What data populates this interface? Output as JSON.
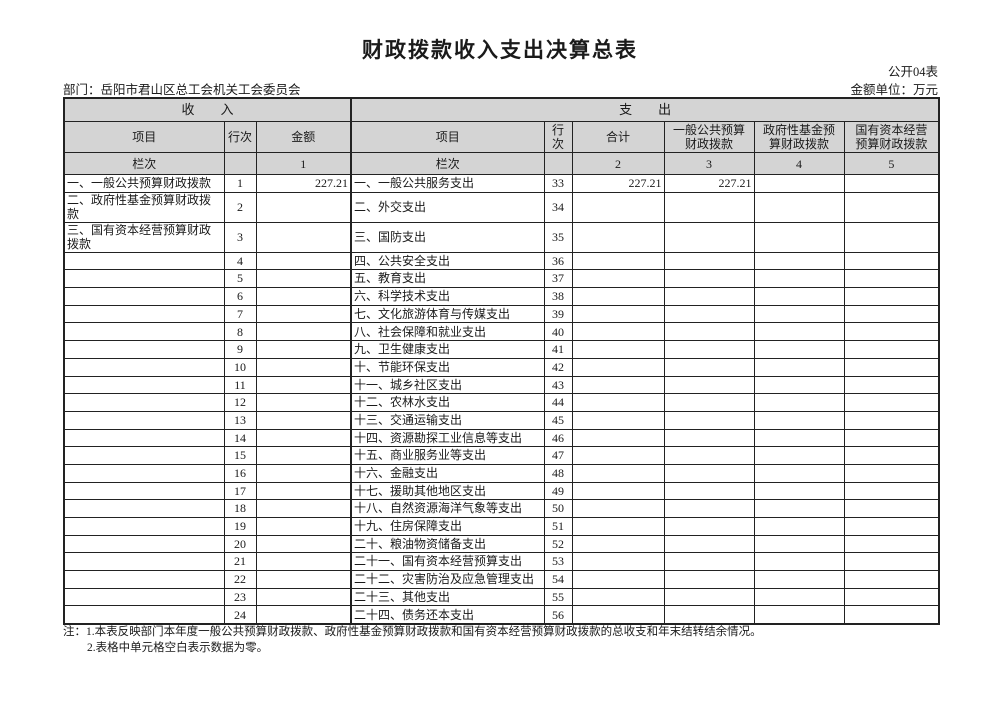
{
  "page": {
    "title": "财政拨款收入支出决算总表",
    "table_code": "公开04表",
    "department": "部门：岳阳市君山区总工会机关工会委员会",
    "unit": "金额单位：万元"
  },
  "colors": {
    "header_bg": "#d4d4d4",
    "border": "#222222",
    "text": "#1a1a1a"
  },
  "table": {
    "headers": {
      "income_band": "收　　入",
      "expense_band": "支　　出",
      "item": "项目",
      "line": "行次",
      "amount": "金额",
      "total": "合计",
      "general_budget": "一般公共预算\n财政拨款",
      "gov_fund": "政府性基金预\n算财政拨款",
      "state_capital": "国有资本经营\n预算财政拨款",
      "lan_label": "栏次",
      "col1": "1",
      "col2": "2",
      "col3": "3",
      "col4": "4",
      "col5": "5"
    },
    "rows": [
      {
        "in_item": "一、一般公共预算财政拨款",
        "in_line": "1",
        "in_amount": "227.21",
        "out_item": "一、一般公共服务支出",
        "out_line": "33",
        "out_total": "227.21",
        "out_general": "227.21",
        "out_govfund": "",
        "out_statecap": ""
      },
      {
        "in_item": "二、政府性基金预算财政拨款",
        "in_line": "2",
        "in_amount": "",
        "out_item": "二、外交支出",
        "out_line": "34",
        "out_total": "",
        "out_general": "",
        "out_govfund": "",
        "out_statecap": ""
      },
      {
        "in_item": "三、国有资本经营预算财政拨款",
        "in_line": "3",
        "in_amount": "",
        "out_item": "三、国防支出",
        "out_line": "35",
        "out_total": "",
        "out_general": "",
        "out_govfund": "",
        "out_statecap": ""
      },
      {
        "in_item": "",
        "in_line": "4",
        "in_amount": "",
        "out_item": "四、公共安全支出",
        "out_line": "36",
        "out_total": "",
        "out_general": "",
        "out_govfund": "",
        "out_statecap": ""
      },
      {
        "in_item": "",
        "in_line": "5",
        "in_amount": "",
        "out_item": "五、教育支出",
        "out_line": "37",
        "out_total": "",
        "out_general": "",
        "out_govfund": "",
        "out_statecap": ""
      },
      {
        "in_item": "",
        "in_line": "6",
        "in_amount": "",
        "out_item": "六、科学技术支出",
        "out_line": "38",
        "out_total": "",
        "out_general": "",
        "out_govfund": "",
        "out_statecap": ""
      },
      {
        "in_item": "",
        "in_line": "7",
        "in_amount": "",
        "out_item": "七、文化旅游体育与传媒支出",
        "out_line": "39",
        "out_total": "",
        "out_general": "",
        "out_govfund": "",
        "out_statecap": ""
      },
      {
        "in_item": "",
        "in_line": "8",
        "in_amount": "",
        "out_item": "八、社会保障和就业支出",
        "out_line": "40",
        "out_total": "",
        "out_general": "",
        "out_govfund": "",
        "out_statecap": ""
      },
      {
        "in_item": "",
        "in_line": "9",
        "in_amount": "",
        "out_item": "九、卫生健康支出",
        "out_line": "41",
        "out_total": "",
        "out_general": "",
        "out_govfund": "",
        "out_statecap": ""
      },
      {
        "in_item": "",
        "in_line": "10",
        "in_amount": "",
        "out_item": "十、节能环保支出",
        "out_line": "42",
        "out_total": "",
        "out_general": "",
        "out_govfund": "",
        "out_statecap": ""
      },
      {
        "in_item": "",
        "in_line": "11",
        "in_amount": "",
        "out_item": "十一、城乡社区支出",
        "out_line": "43",
        "out_total": "",
        "out_general": "",
        "out_govfund": "",
        "out_statecap": ""
      },
      {
        "in_item": "",
        "in_line": "12",
        "in_amount": "",
        "out_item": "十二、农林水支出",
        "out_line": "44",
        "out_total": "",
        "out_general": "",
        "out_govfund": "",
        "out_statecap": ""
      },
      {
        "in_item": "",
        "in_line": "13",
        "in_amount": "",
        "out_item": "十三、交通运输支出",
        "out_line": "45",
        "out_total": "",
        "out_general": "",
        "out_govfund": "",
        "out_statecap": ""
      },
      {
        "in_item": "",
        "in_line": "14",
        "in_amount": "",
        "out_item": "十四、资源勘探工业信息等支出",
        "out_line": "46",
        "out_total": "",
        "out_general": "",
        "out_govfund": "",
        "out_statecap": ""
      },
      {
        "in_item": "",
        "in_line": "15",
        "in_amount": "",
        "out_item": "十五、商业服务业等支出",
        "out_line": "47",
        "out_total": "",
        "out_general": "",
        "out_govfund": "",
        "out_statecap": ""
      },
      {
        "in_item": "",
        "in_line": "16",
        "in_amount": "",
        "out_item": "十六、金融支出",
        "out_line": "48",
        "out_total": "",
        "out_general": "",
        "out_govfund": "",
        "out_statecap": ""
      },
      {
        "in_item": "",
        "in_line": "17",
        "in_amount": "",
        "out_item": "十七、援助其他地区支出",
        "out_line": "49",
        "out_total": "",
        "out_general": "",
        "out_govfund": "",
        "out_statecap": ""
      },
      {
        "in_item": "",
        "in_line": "18",
        "in_amount": "",
        "out_item": "十八、自然资源海洋气象等支出",
        "out_line": "50",
        "out_total": "",
        "out_general": "",
        "out_govfund": "",
        "out_statecap": ""
      },
      {
        "in_item": "",
        "in_line": "19",
        "in_amount": "",
        "out_item": "十九、住房保障支出",
        "out_line": "51",
        "out_total": "",
        "out_general": "",
        "out_govfund": "",
        "out_statecap": ""
      },
      {
        "in_item": "",
        "in_line": "20",
        "in_amount": "",
        "out_item": "二十、粮油物资储备支出",
        "out_line": "52",
        "out_total": "",
        "out_general": "",
        "out_govfund": "",
        "out_statecap": ""
      },
      {
        "in_item": "",
        "in_line": "21",
        "in_amount": "",
        "out_item": "二十一、国有资本经营预算支出",
        "out_line": "53",
        "out_total": "",
        "out_general": "",
        "out_govfund": "",
        "out_statecap": ""
      },
      {
        "in_item": "",
        "in_line": "22",
        "in_amount": "",
        "out_item": "二十二、灾害防治及应急管理支出",
        "out_line": "54",
        "out_total": "",
        "out_general": "",
        "out_govfund": "",
        "out_statecap": ""
      },
      {
        "in_item": "",
        "in_line": "23",
        "in_amount": "",
        "out_item": "二十三、其他支出",
        "out_line": "55",
        "out_total": "",
        "out_general": "",
        "out_govfund": "",
        "out_statecap": ""
      },
      {
        "in_item": "",
        "in_line": "24",
        "in_amount": "",
        "out_item": "二十四、债务还本支出",
        "out_line": "56",
        "out_total": "",
        "out_general": "",
        "out_govfund": "",
        "out_statecap": ""
      }
    ]
  },
  "notes": {
    "prefix": "注：",
    "line1": "1.本表反映部门本年度一般公共预算财政拨款、政府性基金预算财政拨款和国有资本经营预算财政拨款的总收支和年末结转结余情况。",
    "line2": "2.表格中单元格空白表示数据为零。"
  }
}
